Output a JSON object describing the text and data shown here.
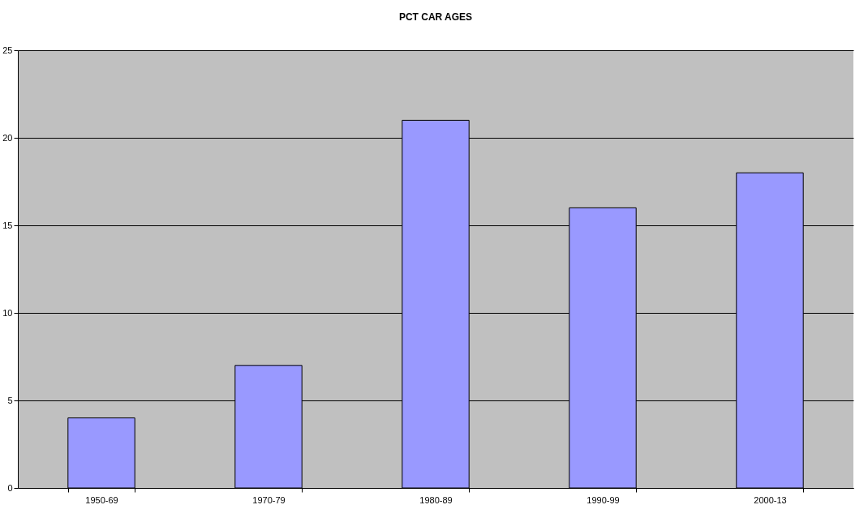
{
  "chart_data": {
    "type": "bar",
    "title": "PCT CAR AGES",
    "categories": [
      "1950-69",
      "1970-79",
      "1980-89",
      "1990-99",
      "2000-13"
    ],
    "values": [
      4,
      7,
      21,
      16,
      18
    ],
    "color": "#9999ff",
    "ylim": [
      0,
      25
    ],
    "yticks": [
      0,
      5,
      10,
      15,
      20,
      25
    ],
    "grid": "y"
  }
}
